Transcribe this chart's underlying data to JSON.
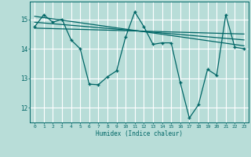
{
  "xlabel": "Humidex (Indice chaleur)",
  "bg_color": "#b8ddd8",
  "grid_color": "#ffffff",
  "line_color": "#006666",
  "xlim": [
    -0.5,
    23.5
  ],
  "ylim": [
    11.5,
    15.6
  ],
  "yticks": [
    12,
    13,
    14,
    15
  ],
  "xticks": [
    0,
    1,
    2,
    3,
    4,
    5,
    6,
    7,
    8,
    9,
    10,
    11,
    12,
    13,
    14,
    15,
    16,
    17,
    18,
    19,
    20,
    21,
    22,
    23
  ],
  "series1_x": [
    0,
    1,
    2,
    3,
    4,
    5,
    6,
    7,
    8,
    9,
    10,
    11,
    12,
    13,
    14,
    15,
    16,
    17,
    18,
    19,
    20,
    21,
    22,
    23
  ],
  "series1_y": [
    14.75,
    15.15,
    14.9,
    15.0,
    14.3,
    14.0,
    12.8,
    12.78,
    13.05,
    13.25,
    14.4,
    15.25,
    14.75,
    14.15,
    14.2,
    14.2,
    12.85,
    11.65,
    12.1,
    13.3,
    13.1,
    15.15,
    14.05,
    14.0
  ],
  "trend1_x": [
    0,
    23
  ],
  "trend1_y": [
    15.1,
    14.1
  ],
  "trend2_x": [
    0,
    23
  ],
  "trend2_y": [
    14.9,
    14.3
  ],
  "trend3_x": [
    0,
    23
  ],
  "trend3_y": [
    14.7,
    14.5
  ]
}
